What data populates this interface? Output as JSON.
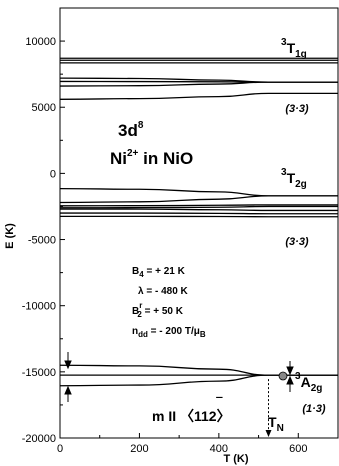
{
  "chart_data": {
    "type": "line",
    "title": "",
    "xlabel": "T (K)",
    "ylabel": "E (K)",
    "xlim": [
      0,
      700
    ],
    "ylim": [
      -20000,
      12500
    ],
    "x_ticks": [
      "0",
      "200",
      "400",
      "600"
    ],
    "y_ticks": [
      "10000",
      "5000",
      "0",
      "-5000",
      "-10000",
      "-15000",
      "-20000"
    ],
    "grid": false,
    "annotations": {
      "config": "3d",
      "config_sup": "8",
      "ion_line": "Ni",
      "ion_charge": "2+",
      "ion_rest": " in NiO",
      "t1g_sup": "3",
      "t1g_main": "T",
      "t1g_sub": "1g",
      "t1g_deg": "(3·3)",
      "t2g_sup": "3",
      "t2g_main": "T",
      "t2g_sub": "2g",
      "t2g_deg": "(3·3)",
      "a2g_sup": "3",
      "a2g_main": "A",
      "a2g_sub": "2g",
      "a2g_deg": "(1·3)",
      "param_b4": "B",
      "param_b4_sub": "4",
      "param_b4_val": " = + 21 K",
      "param_lambda": "λ = - 480 K",
      "param_b2": "B",
      "param_b2_sup": "r",
      "param_b2_sub": "2",
      "param_b2_val": " = + 50 K",
      "param_ndd": "n",
      "param_ndd_sub": "dd",
      "param_ndd_val": " = - 200 T/μ",
      "param_ndd_unit_sub": "B",
      "m_dir": "m II 〈112",
      "m_dir_bar": "‾",
      "m_dir_close": "〉",
      "tn": "T",
      "tn_sub": "N"
    },
    "TN": 525,
    "series": [
      {
        "group": "3T1g",
        "x": [
          0,
          525,
          700
        ],
        "y": [
          8700,
          8700,
          8700
        ]
      },
      {
        "group": "3T1g",
        "x": [
          0,
          525,
          700
        ],
        "y": [
          8550,
          8550,
          8550
        ]
      },
      {
        "group": "3T1g",
        "x": [
          0,
          525,
          700
        ],
        "y": [
          8350,
          8350,
          8350
        ]
      },
      {
        "group": "3T1g",
        "x": [
          0,
          200,
          400,
          525,
          700
        ],
        "y": [
          7200,
          7170,
          7050,
          6900,
          6900
        ]
      },
      {
        "group": "3T1g",
        "x": [
          0,
          200,
          400,
          525,
          700
        ],
        "y": [
          6950,
          6940,
          6920,
          6900,
          6900
        ]
      },
      {
        "group": "3T1g",
        "x": [
          0,
          200,
          400,
          525,
          700
        ],
        "y": [
          6600,
          6630,
          6750,
          6900,
          6900
        ]
      },
      {
        "group": "3T1g",
        "x": [
          0,
          200,
          400,
          525,
          700
        ],
        "y": [
          5600,
          5650,
          5800,
          6050,
          6050
        ]
      },
      {
        "group": "3T2g",
        "x": [
          0,
          200,
          400,
          525,
          700
        ],
        "y": [
          -1150,
          -1200,
          -1400,
          -1700,
          -1700
        ]
      },
      {
        "group": "3T2g",
        "x": [
          0,
          200,
          400,
          525,
          700
        ],
        "y": [
          -2200,
          -2150,
          -1950,
          -1700,
          -1700
        ]
      },
      {
        "group": "3T2g",
        "x": [
          0,
          200,
          400,
          525,
          700
        ],
        "y": [
          -2450,
          -2440,
          -2410,
          -2380,
          -2380
        ]
      },
      {
        "group": "3T2g",
        "x": [
          0,
          200,
          400,
          525,
          700
        ],
        "y": [
          -2600,
          -2590,
          -2560,
          -2500,
          -2500
        ]
      },
      {
        "group": "3T2g",
        "x": [
          0,
          200,
          400,
          525,
          700
        ],
        "y": [
          -2700,
          -2700,
          -2750,
          -2800,
          -2800
        ]
      },
      {
        "group": "3T2g",
        "x": [
          0,
          200,
          400,
          525,
          700
        ],
        "y": [
          -3000,
          -3000,
          -3020,
          -3050,
          -3050
        ]
      },
      {
        "group": "3T2g",
        "x": [
          0,
          200,
          400,
          525,
          700
        ],
        "y": [
          -3250,
          -3250,
          -3260,
          -3280,
          -3280
        ]
      },
      {
        "group": "3A2g",
        "x": [
          0,
          200,
          400,
          525,
          700
        ],
        "y": [
          -14500,
          -14550,
          -14800,
          -15250,
          -15250
        ]
      },
      {
        "group": "3A2g",
        "x": [
          0,
          525,
          700
        ],
        "y": [
          -15250,
          -15250,
          -15250
        ]
      },
      {
        "group": "3A2g",
        "x": [
          0,
          200,
          400,
          525,
          700
        ],
        "y": [
          -16050,
          -16000,
          -15700,
          -15250,
          -15250
        ]
      }
    ]
  }
}
